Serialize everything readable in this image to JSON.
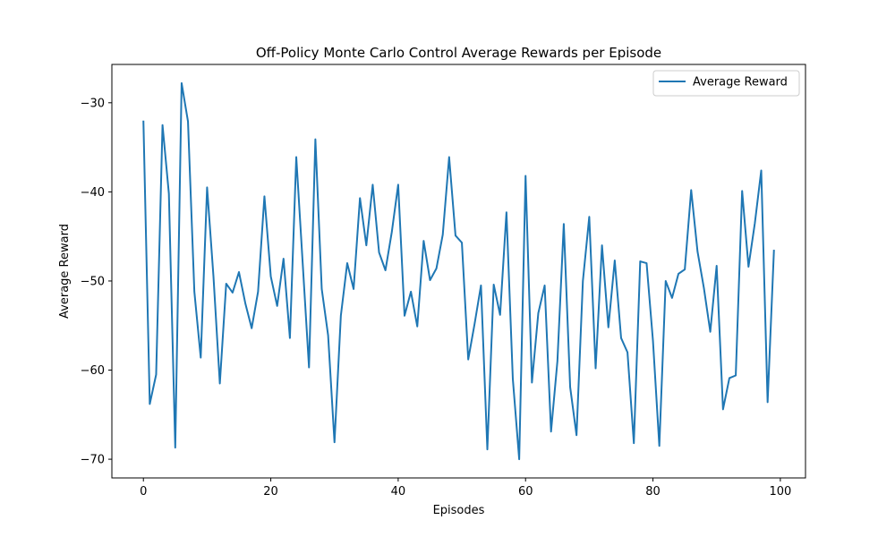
{
  "chart_data": {
    "type": "line",
    "title": "Off-Policy Monte Carlo Control Average Rewards per Episode",
    "xlabel": "Episodes",
    "ylabel": "Average Reward",
    "xlim": [
      -4.95,
      103.95
    ],
    "ylim": [
      -72.1,
      -25.7
    ],
    "xticks": [
      0,
      20,
      40,
      60,
      80,
      100
    ],
    "yticks": [
      -30,
      -40,
      -50,
      -60,
      -70
    ],
    "grid": false,
    "legend_position": "top-right",
    "series": [
      {
        "name": "Average Reward",
        "color": "#1f77b4",
        "x": [
          0,
          1,
          2,
          3,
          4,
          5,
          6,
          7,
          8,
          9,
          10,
          11,
          12,
          13,
          14,
          15,
          16,
          17,
          18,
          19,
          20,
          21,
          22,
          23,
          24,
          25,
          26,
          27,
          28,
          29,
          30,
          31,
          32,
          33,
          34,
          35,
          36,
          37,
          38,
          39,
          40,
          41,
          42,
          43,
          44,
          45,
          46,
          47,
          48,
          49,
          50,
          51,
          52,
          53,
          54,
          55,
          56,
          57,
          58,
          59,
          60,
          61,
          62,
          63,
          64,
          65,
          66,
          67,
          68,
          69,
          70,
          71,
          72,
          73,
          74,
          75,
          76,
          77,
          78,
          79,
          80,
          81,
          82,
          83,
          84,
          85,
          86,
          87,
          88,
          89,
          90,
          91,
          92,
          93,
          94,
          95,
          96,
          97,
          98,
          99
        ],
        "values": [
          -32,
          -63.8,
          -60.5,
          -32.5,
          -40.2,
          -68.7,
          -27.8,
          -32.1,
          -51.2,
          -58.6,
          -39.5,
          -49.5,
          -61.5,
          -50.3,
          -51.3,
          -49,
          -52.5,
          -55.3,
          -51.2,
          -40.5,
          -49.5,
          -52.8,
          -47.5,
          -56.4,
          -36.1,
          -47.9,
          -59.7,
          -34.1,
          -50.9,
          -56.1,
          -68.1,
          -53.9,
          -48,
          -50.9,
          -40.7,
          -46,
          -39.2,
          -46.8,
          -48.8,
          -44.5,
          -39.2,
          -53.9,
          -51.2,
          -55.1,
          -45.5,
          -49.9,
          -48.6,
          -44.8,
          -36.1,
          -44.9,
          -45.7,
          -58.8,
          -54.8,
          -50.5,
          -68.9,
          -50.4,
          -53.8,
          -42.3,
          -61,
          -70,
          -38.2,
          -61.4,
          -53.6,
          -50.5,
          -66.9,
          -59,
          -43.6,
          -61.9,
          -67.3,
          -50,
          -42.8,
          -59.8,
          -46,
          -55.2,
          -47.7,
          -56.4,
          -58,
          -68.2,
          -47.8,
          -48,
          -56.7,
          -68.5,
          -50,
          -51.9,
          -49.2,
          -48.7,
          -39.8,
          -46.7,
          -50.8,
          -55.7,
          -48.3,
          -64.4,
          -60.9,
          -60.6,
          -39.9,
          -48.4,
          -43.5,
          -37.6,
          -63.6,
          -46.5
        ]
      }
    ]
  }
}
